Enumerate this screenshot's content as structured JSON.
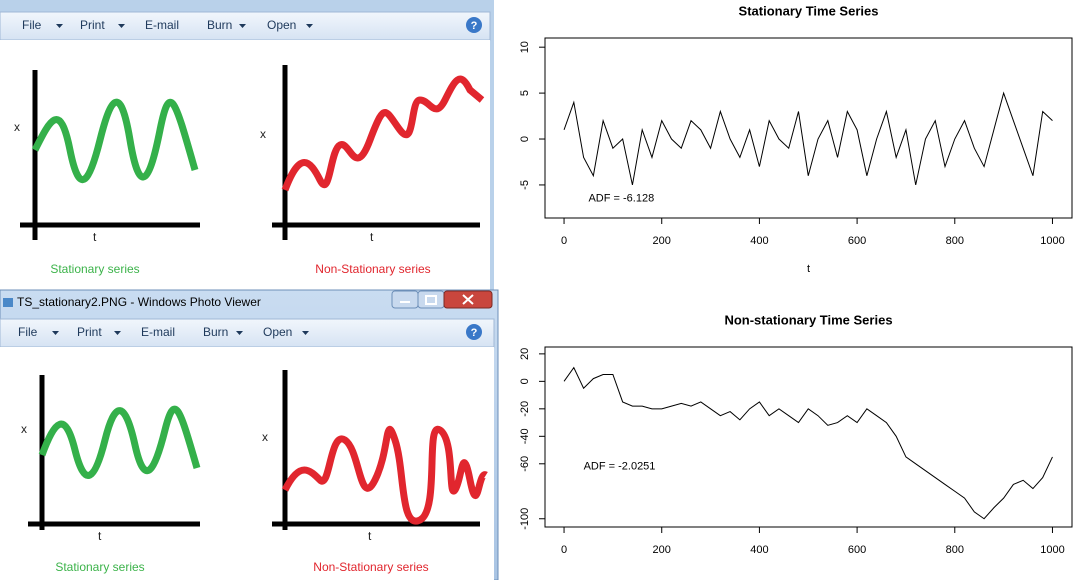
{
  "viewer": {
    "title": "TS_stationary2.PNG - Windows Photo Viewer",
    "menu": [
      "File",
      "Print",
      "E-mail",
      "Burn",
      "Open"
    ],
    "help": "?",
    "axis_y": "x",
    "axis_x": "t",
    "captions": [
      "Stationary series",
      "Non-Stationary series"
    ]
  },
  "chart_data": [
    {
      "type": "line",
      "title": "Stationary Time Series",
      "x_label": "t",
      "annotation": "ADF = -6.128",
      "annotation_x": 50,
      "annotation_y": -6.5,
      "xlim": [
        -39,
        1040
      ],
      "ylim": [
        -8.6,
        11
      ],
      "xticks": [
        0,
        200,
        400,
        600,
        800,
        1000
      ],
      "yticks": [
        -5,
        0,
        5,
        10
      ],
      "x": [
        0,
        20,
        40,
        60,
        80,
        100,
        120,
        140,
        160,
        180,
        200,
        220,
        240,
        260,
        280,
        300,
        320,
        340,
        360,
        380,
        400,
        420,
        440,
        460,
        480,
        500,
        520,
        540,
        560,
        580,
        600,
        620,
        640,
        660,
        680,
        700,
        720,
        740,
        760,
        780,
        800,
        820,
        840,
        860,
        880,
        900,
        920,
        940,
        960,
        980,
        1000
      ],
      "series": [
        {
          "color": "#000000",
          "values": [
            1,
            4,
            -2,
            -4,
            2,
            -1,
            0,
            -5,
            1,
            -2,
            2,
            0,
            -1,
            2,
            1,
            -1,
            3,
            0,
            -2,
            1,
            -3,
            2,
            0,
            -1,
            3,
            -4,
            0,
            2,
            -2,
            3,
            1,
            -4,
            0,
            3,
            -2,
            1,
            -5,
            0,
            2,
            -3,
            0,
            2,
            -1,
            -3,
            1,
            5,
            2,
            -1,
            -4,
            3,
            2
          ]
        }
      ]
    },
    {
      "type": "line",
      "title": "Non-stationary Time Series",
      "annotation": "ADF = -2.0251",
      "annotation_x": 40,
      "annotation_y": -62,
      "xlim": [
        -39,
        1040
      ],
      "ylim": [
        -106,
        25
      ],
      "xticks": [
        0,
        200,
        400,
        600,
        800,
        1000
      ],
      "yticks": [
        20,
        0,
        -20,
        -40,
        -60,
        -100
      ],
      "x": [
        0,
        20,
        40,
        60,
        80,
        100,
        120,
        140,
        160,
        180,
        200,
        220,
        240,
        260,
        280,
        300,
        320,
        340,
        360,
        380,
        400,
        420,
        440,
        460,
        480,
        500,
        520,
        540,
        560,
        580,
        600,
        620,
        640,
        660,
        680,
        700,
        720,
        740,
        760,
        780,
        800,
        820,
        840,
        860,
        880,
        900,
        920,
        940,
        960,
        980,
        1000
      ],
      "series": [
        {
          "color": "#000000",
          "values": [
            0,
            10,
            -5,
            2,
            5,
            5,
            -15,
            -18,
            -18,
            -20,
            -20,
            -18,
            -16,
            -18,
            -15,
            -20,
            -25,
            -22,
            -28,
            -20,
            -15,
            -25,
            -20,
            -25,
            -30,
            -20,
            -25,
            -32,
            -30,
            -25,
            -30,
            -20,
            -25,
            -30,
            -40,
            -55,
            -60,
            -65,
            -70,
            -75,
            -80,
            -85,
            -95,
            -100,
            -92,
            -85,
            -75,
            -72,
            -78,
            -70,
            -55
          ]
        }
      ]
    }
  ]
}
